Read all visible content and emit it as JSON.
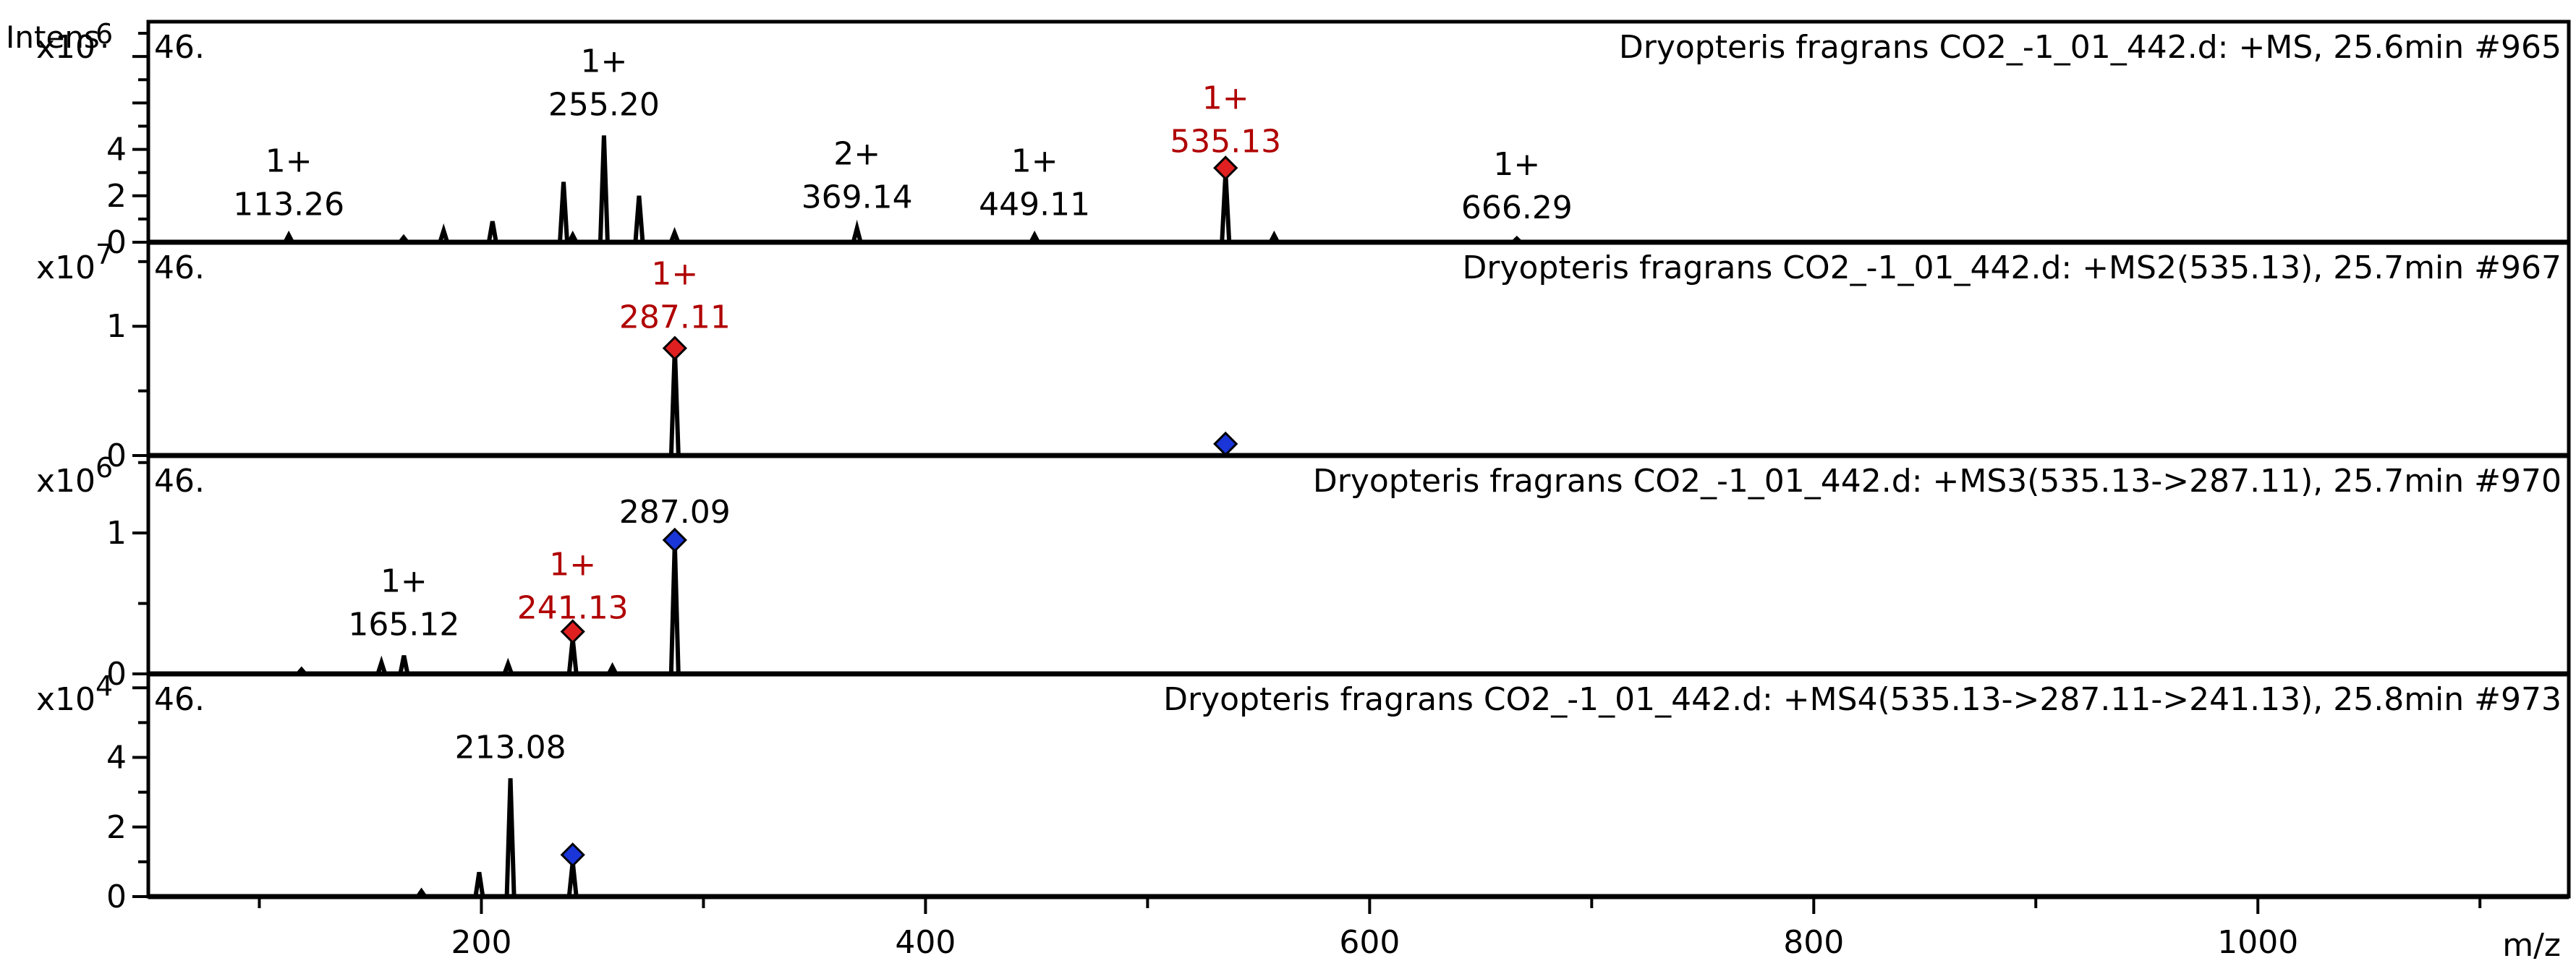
{
  "chart_data": [
    {
      "type": "line",
      "panel_id": "46.",
      "title": "Dryopteris fragrans CO2_-1_01_442.d: +MS, 25.6min #965",
      "y_axis_title": "Intens.",
      "y_multiplier": "x10^6",
      "y_multiplier_base": "x10",
      "y_multiplier_exp": "6",
      "ylim": [
        0,
        9.5
      ],
      "yticks": [
        0,
        2,
        4
      ],
      "xlim": [
        50,
        1140
      ],
      "peaks": [
        {
          "x": 113.26,
          "y": 0.3
        },
        {
          "x": 165,
          "y": 0.2
        },
        {
          "x": 183,
          "y": 0.5
        },
        {
          "x": 205,
          "y": 0.9
        },
        {
          "x": 237,
          "y": 2.6
        },
        {
          "x": 241.13,
          "y": 0.3
        },
        {
          "x": 255.2,
          "y": 4.6
        },
        {
          "x": 271,
          "y": 2.0
        },
        {
          "x": 287,
          "y": 0.4
        },
        {
          "x": 369.14,
          "y": 0.6
        },
        {
          "x": 449.11,
          "y": 0.3
        },
        {
          "x": 535.13,
          "y": 3.0
        },
        {
          "x": 557,
          "y": 0.3
        },
        {
          "x": 666.29,
          "y": 0.15
        }
      ],
      "labels": [
        {
          "mz": "113.26",
          "charge": "1+",
          "x": 113.26,
          "y": 0.3,
          "color": "#000000"
        },
        {
          "mz": "255.20",
          "charge": "1+",
          "x": 255.2,
          "y": 4.6,
          "color": "#000000"
        },
        {
          "mz": "369.14",
          "charge": "2+",
          "x": 369.14,
          "y": 0.6,
          "color": "#000000"
        },
        {
          "mz": "449.11",
          "charge": "1+",
          "x": 449.11,
          "y": 0.3,
          "color": "#000000"
        },
        {
          "mz": "535.13",
          "charge": "1+",
          "x": 535.13,
          "y": 3.0,
          "color": "#b00000"
        },
        {
          "mz": "666.29",
          "charge": "1+",
          "x": 666.29,
          "y": 0.15,
          "color": "#000000"
        }
      ],
      "markers": [
        {
          "x": 535.13,
          "y": 3.2,
          "color": "#e02020"
        }
      ]
    },
    {
      "type": "line",
      "panel_id": "46.",
      "title": "Dryopteris fragrans CO2_-1_01_442.d: +MS2(535.13), 25.7min #967",
      "y_multiplier": "x10^7",
      "y_multiplier_base": "x10",
      "y_multiplier_exp": "7",
      "ylim": [
        0,
        1.65
      ],
      "yticks": [
        0,
        1
      ],
      "xlim": [
        50,
        1140
      ],
      "peaks": [
        {
          "x": 287.11,
          "y": 0.83
        }
      ],
      "labels": [
        {
          "mz": "287.11",
          "charge": "1+",
          "x": 287.11,
          "y": 0.83,
          "color": "#b00000"
        }
      ],
      "markers": [
        {
          "x": 287.11,
          "y": 0.83,
          "color": "#e02020"
        },
        {
          "x": 535.13,
          "y": 0.09,
          "color": "#1a35d8"
        }
      ]
    },
    {
      "type": "line",
      "panel_id": "46.",
      "title": "Dryopteris fragrans CO2_-1_01_442.d: +MS3(535.13->287.11), 25.7min #970",
      "y_multiplier": "x10^6",
      "y_multiplier_base": "x10",
      "y_multiplier_exp": "6",
      "ylim": [
        0,
        1.55
      ],
      "yticks": [
        0,
        1
      ],
      "xlim": [
        50,
        1140
      ],
      "peaks": [
        {
          "x": 119,
          "y": 0.03
        },
        {
          "x": 155,
          "y": 0.08
        },
        {
          "x": 165.12,
          "y": 0.13
        },
        {
          "x": 212,
          "y": 0.07
        },
        {
          "x": 241.13,
          "y": 0.25
        },
        {
          "x": 259,
          "y": 0.05
        },
        {
          "x": 287.09,
          "y": 0.93
        }
      ],
      "labels": [
        {
          "mz": "165.12",
          "charge": "1+",
          "x": 165.12,
          "y": 0.13,
          "color": "#000000"
        },
        {
          "mz": "241.13",
          "charge": "1+",
          "x": 241.13,
          "y": 0.25,
          "color": "#b00000"
        },
        {
          "mz": "287.09",
          "charge": "",
          "x": 287.09,
          "y": 0.93,
          "color": "#000000"
        }
      ],
      "markers": [
        {
          "x": 241.13,
          "y": 0.3,
          "color": "#e02020"
        },
        {
          "x": 287.09,
          "y": 0.95,
          "color": "#1a35d8"
        }
      ]
    },
    {
      "type": "line",
      "panel_id": "46.",
      "title": "Dryopteris fragrans CO2_-1_01_442.d: +MS4(535.13->287.11->241.13), 25.8min #973",
      "y_multiplier": "x10^4",
      "y_multiplier_base": "x10",
      "y_multiplier_exp": "4",
      "x_axis_title": "m/z",
      "ylim": [
        0,
        6.4
      ],
      "yticks": [
        0,
        2,
        4
      ],
      "xlim": [
        50,
        1140
      ],
      "xticks": [
        200,
        400,
        600,
        800,
        1000
      ],
      "peaks": [
        {
          "x": 173,
          "y": 0.15
        },
        {
          "x": 199,
          "y": 0.7
        },
        {
          "x": 213.08,
          "y": 3.4
        },
        {
          "x": 241.13,
          "y": 1.0
        }
      ],
      "labels": [
        {
          "mz": "213.08",
          "charge": "",
          "x": 213.08,
          "y": 3.4,
          "color": "#000000"
        }
      ],
      "markers": [
        {
          "x": 241.13,
          "y": 1.2,
          "color": "#1a35d8"
        }
      ]
    }
  ]
}
